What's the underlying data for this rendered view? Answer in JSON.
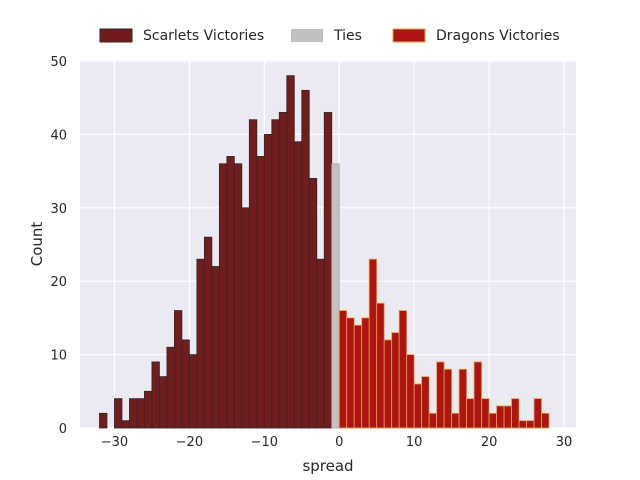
{
  "chart_data": {
    "type": "bar",
    "title": "",
    "xlabel": "spread",
    "ylabel": "Count",
    "xlim": [
      -34.6,
      31.6
    ],
    "ylim": [
      0,
      50
    ],
    "xticks": [
      -30,
      -20,
      -10,
      0,
      10,
      20,
      30
    ],
    "yticks": [
      0,
      10,
      20,
      30,
      40,
      50
    ],
    "xtick_labels": [
      "−30",
      "−20",
      "−10",
      "0",
      "10",
      "20",
      "30"
    ],
    "ytick_labels": [
      "0",
      "10",
      "20",
      "30",
      "40",
      "50"
    ],
    "bin_width": 1,
    "grid": true,
    "legend_position": "top",
    "series": [
      {
        "name": "Scarlets Victories",
        "color": "#731c1c",
        "edge": "#2a2a2a",
        "bins_start": [
          -32,
          -31,
          -30,
          -29,
          -28,
          -27,
          -26,
          -25,
          -24,
          -23,
          -22,
          -21,
          -20,
          -19,
          -18,
          -17,
          -16,
          -15,
          -14,
          -13,
          -12,
          -11,
          -10,
          -9,
          -8,
          -7,
          -6,
          -5,
          -4,
          -3,
          -2,
          -1
        ],
        "counts": [
          2,
          0,
          4,
          1,
          4,
          4,
          5,
          9,
          7,
          11,
          16,
          12,
          10,
          23,
          26,
          22,
          36,
          37,
          36,
          30,
          42,
          37,
          40,
          42,
          43,
          48,
          39,
          46,
          34,
          23,
          43,
          0
        ]
      },
      {
        "name": "Ties",
        "color": "#c0c0c0",
        "edge": "#a8a8a8",
        "bins_start": [
          -1
        ],
        "counts": [
          36
        ]
      },
      {
        "name": "Dragons Victories",
        "color": "#b01313",
        "edge": "#d8a838",
        "bins_start": [
          0,
          1,
          2,
          3,
          4,
          5,
          6,
          7,
          8,
          9,
          10,
          11,
          12,
          13,
          14,
          15,
          16,
          17,
          18,
          19,
          20,
          21,
          22,
          23,
          24,
          25,
          26,
          27
        ],
        "counts": [
          16,
          15,
          14,
          15,
          23,
          17,
          12,
          13,
          16,
          10,
          6,
          7,
          2,
          9,
          8,
          2,
          8,
          4,
          9,
          4,
          2,
          3,
          3,
          4,
          1,
          1,
          4,
          2
        ]
      }
    ]
  }
}
